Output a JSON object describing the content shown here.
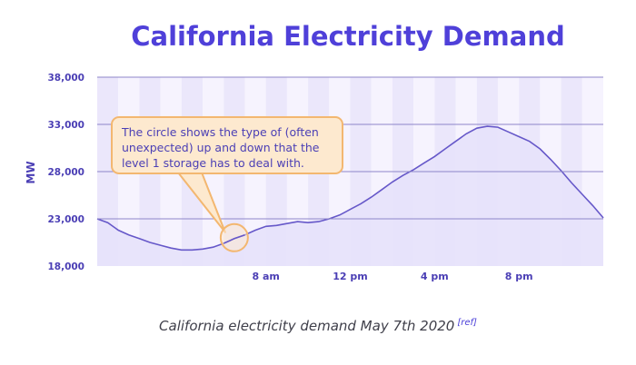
{
  "chart_data": {
    "type": "area",
    "title": "California Electricity Demand",
    "ylabel": "MW",
    "xlabel": "",
    "ylim": [
      18000,
      38000
    ],
    "yticks": [
      "38,000",
      "33,000",
      "28,000",
      "23,000",
      "18,000"
    ],
    "ytick_values": [
      38000,
      33000,
      28000,
      23000,
      18000
    ],
    "xlim": [
      0,
      24
    ],
    "xticks": [
      {
        "label": "8 am",
        "hour": 8
      },
      {
        "label": "12 pm",
        "hour": 12
      },
      {
        "label": "4 pm",
        "hour": 16
      },
      {
        "label": "8 pm",
        "hour": 20
      }
    ],
    "grid": "horizontal",
    "series": [
      {
        "x": [
          0,
          0.5,
          1,
          1.5,
          2,
          2.5,
          3,
          3.5,
          4,
          4.5,
          5,
          5.5,
          6,
          6.5,
          7,
          7.5,
          8,
          8.5,
          9,
          9.5,
          10,
          10.5,
          11,
          11.5,
          12,
          12.5,
          13,
          13.5,
          14,
          14.5,
          15,
          15.5,
          16,
          16.5,
          17,
          17.5,
          18,
          18.5,
          19,
          19.5,
          20,
          20.5,
          21,
          21.5,
          22,
          22.5,
          23,
          23.5,
          24
        ],
        "values": [
          23000,
          22600,
          21800,
          21300,
          20900,
          20500,
          20200,
          19900,
          19700,
          19700,
          19800,
          20000,
          20400,
          20900,
          21300,
          21800,
          22200,
          22300,
          22500,
          22700,
          22600,
          22700,
          23000,
          23400,
          24000,
          24600,
          25300,
          26100,
          26900,
          27600,
          28200,
          28900,
          29600,
          30400,
          31200,
          32000,
          32600,
          32800,
          32700,
          32200,
          31700,
          31200,
          30400,
          29300,
          28100,
          26800,
          25600,
          24400,
          23100
        ]
      }
    ],
    "colors": {
      "title": "#4f40d9",
      "line": "#6658c9",
      "fill": "#e7e2fb",
      "stripe_light": "#f6f3fe",
      "stripe_dark": "#ebe7fb",
      "grid": "#8d86c9",
      "tick": "#4b3fb5",
      "callout_fill": "#fde9cf",
      "callout_border": "#f3b770"
    },
    "annotations": [
      {
        "text": "The circle shows the type of (often unexpected) up and down that the level 1 storage has to deal with.",
        "target_hour": 6.5,
        "target_value": 21000
      }
    ]
  },
  "caption": {
    "text": "California electricity demand May 7th 2020",
    "ref": "[ref]"
  }
}
